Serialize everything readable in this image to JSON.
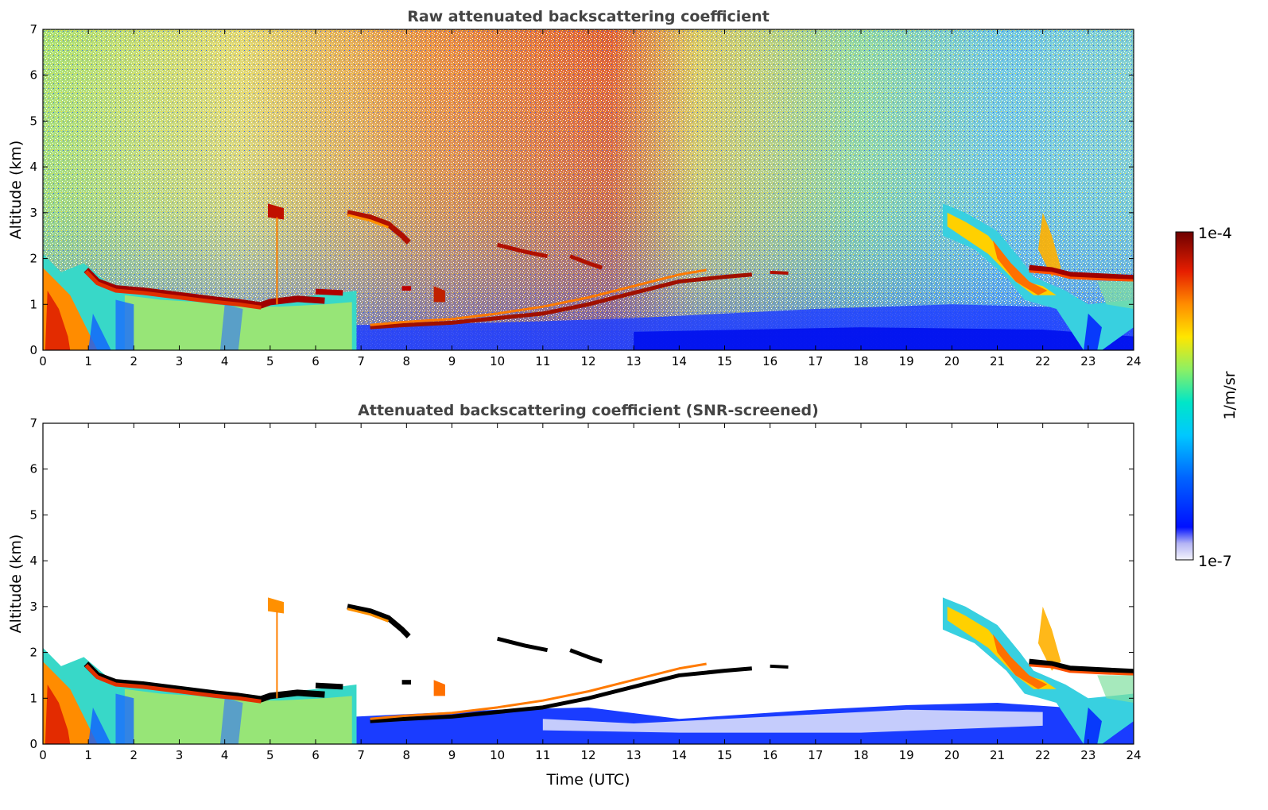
{
  "chart_data": [
    {
      "type": "heatmap",
      "title": "Raw attenuated backscattering coefficient",
      "xlabel": "",
      "ylabel": "Altitude (km)",
      "xlim": [
        0,
        24
      ],
      "ylim": [
        0,
        7
      ],
      "xticks": [
        "0",
        "1",
        "2",
        "3",
        "4",
        "5",
        "6",
        "7",
        "8",
        "9",
        "10",
        "11",
        "12",
        "13",
        "14",
        "15",
        "16",
        "17",
        "18",
        "19",
        "20",
        "21",
        "22",
        "23",
        "24"
      ],
      "yticks": [
        "0",
        "1",
        "2",
        "3",
        "4",
        "5",
        "6",
        "7"
      ],
      "grid": false,
      "features": {
        "low_cloud_top_km": [
          [
            0.9,
            1.9
          ],
          [
            1.5,
            1.35
          ],
          [
            3,
            1.25
          ],
          [
            4,
            1.1
          ],
          [
            4.8,
            1.0
          ],
          [
            5.5,
            1.15
          ],
          [
            6.5,
            1.25
          ]
        ],
        "elevated_layers_km": [
          [
            6.7,
            3.0
          ],
          [
            7.5,
            2.7
          ],
          [
            8,
            2.3
          ],
          [
            10,
            2.3
          ],
          [
            11,
            2.1
          ],
          [
            12,
            1.8
          ]
        ],
        "aerosol_top_rising_km": [
          [
            7,
            0.5
          ],
          [
            9,
            0.6
          ],
          [
            10,
            0.7
          ],
          [
            11,
            0.8
          ],
          [
            12,
            1.0
          ],
          [
            13,
            1.25
          ],
          [
            14,
            1.5
          ],
          [
            15,
            1.65
          ],
          [
            16.4,
            1.7
          ]
        ],
        "evening_cloud_top_km": [
          [
            19.8,
            3.2
          ],
          [
            21,
            2.2
          ],
          [
            21.8,
            1.9
          ],
          [
            22.5,
            1.7
          ],
          [
            24,
            1.6
          ]
        ]
      }
    },
    {
      "type": "heatmap",
      "title": "Attenuated backscattering coefficient (SNR-screened)",
      "xlabel": "Time (UTC)",
      "ylabel": "Altitude (km)",
      "xlim": [
        0,
        24
      ],
      "ylim": [
        0,
        7
      ],
      "xticks": [
        "0",
        "1",
        "2",
        "3",
        "4",
        "5",
        "6",
        "7",
        "8",
        "9",
        "10",
        "11",
        "12",
        "13",
        "14",
        "15",
        "16",
        "17",
        "18",
        "19",
        "20",
        "21",
        "22",
        "23",
        "24"
      ],
      "yticks": [
        "0",
        "1",
        "2",
        "3",
        "4",
        "5",
        "6",
        "7"
      ],
      "grid": false
    }
  ],
  "colorbar": {
    "label": "1/m/sr",
    "max_label": "1e-4",
    "min_label": "1e-7",
    "scale": "log",
    "colors": [
      "#ececfc",
      "#b4b4fc",
      "#0014ff",
      "#0096ff",
      "#00dcdc",
      "#78f078",
      "#ffe600",
      "#ff6400",
      "#c80000",
      "#780000"
    ]
  }
}
